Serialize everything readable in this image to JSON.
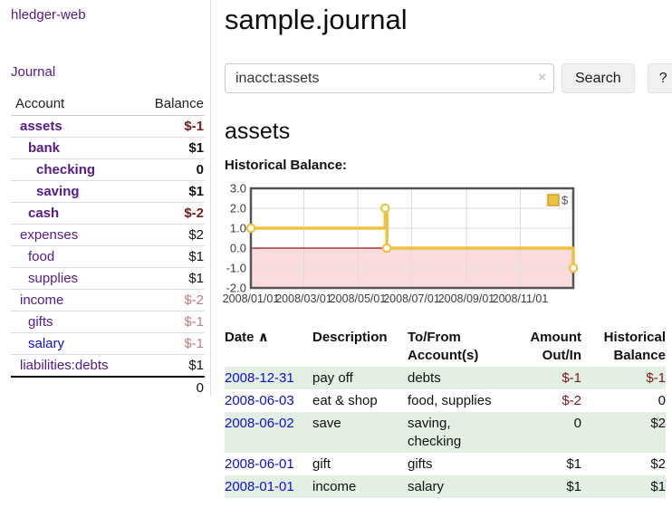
{
  "app": {
    "brand": "hledger-web",
    "nav_journal": "Journal"
  },
  "colors": {
    "link_purple": "#551a8b",
    "link_blue": "#0f0fd6",
    "negative_strong": "#7a1a1a",
    "negative_weak": "#bd7e7e",
    "row_stripe_green": "#e3efe3",
    "chart_line": "#edc240",
    "chart_negative_fill": "#fbdcdc",
    "chart_zero_line": "#941414",
    "chart_grid": "#dcdcdc",
    "chart_border": "#545454"
  },
  "sidebar": {
    "headers": {
      "account": "Account",
      "balance": "Balance"
    },
    "accounts": [
      {
        "name": "assets",
        "balance": "$-1",
        "indent": 1,
        "bold": true,
        "neg": "strong",
        "link": "purple"
      },
      {
        "name": "bank",
        "balance": "$1",
        "indent": 2,
        "bold": true,
        "neg": null,
        "link": "purple"
      },
      {
        "name": "checking",
        "balance": "0",
        "indent": 3,
        "bold": true,
        "neg": null,
        "link": "purple"
      },
      {
        "name": "saving",
        "balance": "$1",
        "indent": 3,
        "bold": true,
        "neg": null,
        "link": "purple"
      },
      {
        "name": "cash",
        "balance": "$-2",
        "indent": 2,
        "bold": true,
        "neg": "strong",
        "link": "purple"
      },
      {
        "name": "expenses",
        "balance": "$2",
        "indent": 1,
        "bold": false,
        "neg": null,
        "link": "purple"
      },
      {
        "name": "food",
        "balance": "$1",
        "indent": 2,
        "bold": false,
        "neg": null,
        "link": "purple"
      },
      {
        "name": "supplies",
        "balance": "$1",
        "indent": 2,
        "bold": false,
        "neg": null,
        "link": "purple"
      },
      {
        "name": "income",
        "balance": "$-2",
        "indent": 1,
        "bold": false,
        "neg": "weak",
        "link": "purple"
      },
      {
        "name": "gifts",
        "balance": "$-1",
        "indent": 2,
        "bold": false,
        "neg": "weak",
        "link": "purple"
      },
      {
        "name": "salary",
        "balance": "$-1",
        "indent": 2,
        "bold": false,
        "neg": "weak",
        "link": "blue"
      },
      {
        "name": "liabilities:debts",
        "balance": "$1",
        "indent": 1,
        "bold": false,
        "neg": null,
        "link": "purple"
      }
    ],
    "total": "0"
  },
  "header": {
    "title": "sample.journal"
  },
  "search": {
    "value": "inacct:assets",
    "clear_icon": "×",
    "button_label": "Search",
    "help_label": "?"
  },
  "account_page": {
    "title": "assets",
    "chart_label": "Historical Balance:"
  },
  "chart_data": {
    "type": "line",
    "title": "Historical Balance:",
    "step": true,
    "series": [
      {
        "name": "$",
        "points": [
          [
            "2008-01-01",
            1.0
          ],
          [
            "2008-06-01",
            2.0
          ],
          [
            "2008-06-03",
            0.0
          ],
          [
            "2008-12-31",
            -1.0
          ]
        ]
      }
    ],
    "xrange": [
      "2008-01-01",
      "2008-12-31"
    ],
    "ylim": [
      -2.0,
      3.0
    ],
    "yticks": [
      "3.0",
      "2.0",
      "1.0",
      "0.0",
      "-1.0",
      "-2.0"
    ],
    "ytick_values": [
      3.0,
      2.0,
      1.0,
      0.0,
      -1.0,
      -2.0
    ],
    "xticks": [
      "2008/01/01",
      "2008/03/01",
      "2008/05/01",
      "2008/07/01",
      "2008/09/01",
      "2008/11/01"
    ],
    "xtick_dates": [
      "2008-01-01",
      "2008-03-01",
      "2008-05-01",
      "2008-07-01",
      "2008-09-01",
      "2008-11-01"
    ],
    "grid": true,
    "negative_region_shaded": true,
    "legend": {
      "label": "$",
      "position": "top-right"
    }
  },
  "register": {
    "columns": [
      "Date",
      "Description",
      "To/From Account(s)",
      "Amount Out/In",
      "Historical Balance"
    ],
    "sort_indicator": "∧",
    "rows": [
      {
        "date": "2008-12-31",
        "description": "pay off",
        "accounts": "debts",
        "amount": "$-1",
        "balance": "$-1"
      },
      {
        "date": "2008-06-03",
        "description": "eat & shop",
        "accounts": "food, supplies",
        "amount": "$-2",
        "balance": "0"
      },
      {
        "date": "2008-06-02",
        "description": "save",
        "accounts": "saving, checking",
        "amount": "0",
        "balance": "$2"
      },
      {
        "date": "2008-06-01",
        "description": "gift",
        "accounts": "gifts",
        "amount": "$1",
        "balance": "$2"
      },
      {
        "date": "2008-01-01",
        "description": "income",
        "accounts": "salary",
        "amount": "$1",
        "balance": "$1"
      }
    ]
  }
}
